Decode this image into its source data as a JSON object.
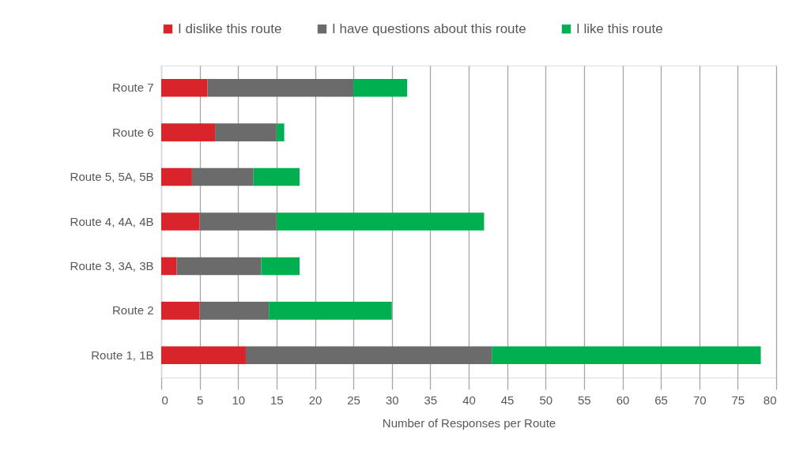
{
  "chart_data": {
    "type": "bar",
    "orientation": "horizontal",
    "stacked": true,
    "categories": [
      "Route 7",
      "Route 6",
      "Route 5, 5A, 5B",
      "Route 4, 4A, 4B",
      "Route 3, 3A, 3B",
      "Route 2",
      "Route 1, 1B"
    ],
    "series": [
      {
        "name": "I dislike this route",
        "color": "#d9242b",
        "values": [
          6,
          7,
          4,
          5,
          2,
          5,
          11
        ]
      },
      {
        "name": "I have questions about this route",
        "color": "#6b6b6b",
        "values": [
          19,
          8,
          8,
          10,
          11,
          9,
          32
        ]
      },
      {
        "name": "I like this route",
        "color": "#00b050",
        "values": [
          7,
          1,
          6,
          27,
          5,
          16,
          35
        ]
      }
    ],
    "xlabel": "Number of Responses per Route",
    "xlim": [
      0,
      80
    ],
    "xticks": [
      0,
      5,
      10,
      15,
      20,
      25,
      30,
      35,
      40,
      45,
      50,
      55,
      60,
      65,
      70,
      75,
      80
    ],
    "grid": "x",
    "legend": "top"
  }
}
